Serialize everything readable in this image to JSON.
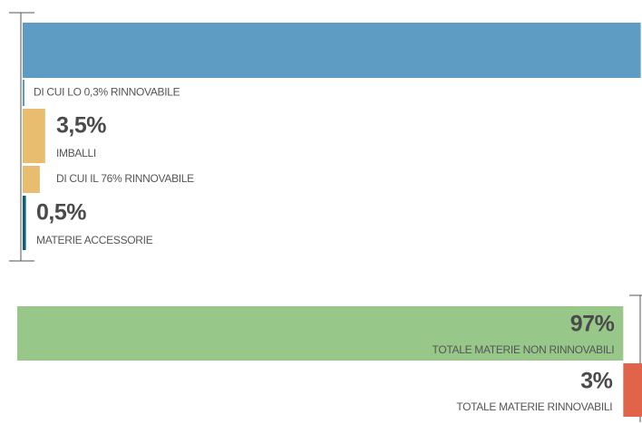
{
  "chart_data": {
    "type": "bar",
    "xlim": [
      0,
      100
    ],
    "top": [
      {
        "value": 96,
        "color": "#5f9cc3",
        "sub": {
          "share": 0.3,
          "label": "DI CUI LO 0,3% RINNOVABILE",
          "color": "#5f9cc3"
        }
      },
      {
        "value": 3.5,
        "value_label": "3,5%",
        "name": "IMBALLI",
        "color": "#e8bd6f",
        "sub": {
          "share": 76,
          "label": "DI CUI IL 76% RINNOVABILE",
          "color": "#e8bd6f"
        }
      },
      {
        "value": 0.5,
        "value_label": "0,5%",
        "name": "MATERIE ACCESSORIE",
        "color": "#0e5f7e"
      }
    ],
    "bottom": [
      {
        "value": 97,
        "value_label": "97%",
        "name": "TOTALE MATERIE NON RINNOVABILI",
        "color": "#98c78a"
      },
      {
        "value": 3,
        "value_label": "3%",
        "name": "TOTALE MATERIE RINNOVABILI",
        "color": "#e0644a"
      }
    ]
  }
}
